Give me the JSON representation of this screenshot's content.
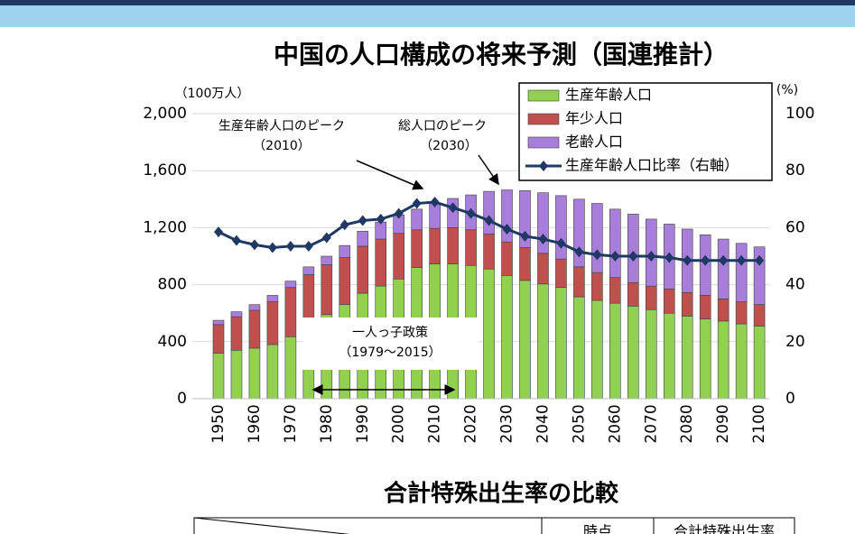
{
  "chart_data": {
    "type": "bar",
    "stacked": true,
    "title": "中国の人口構成の将来予測（国連推計）",
    "y_unit": "（100万人）",
    "y2_unit": "(%)",
    "categories": [
      "1950",
      null,
      "1960",
      null,
      "1970",
      null,
      "1980",
      null,
      "1990",
      null,
      "2000",
      null,
      "2010",
      null,
      "2020",
      null,
      "2030",
      null,
      "2040",
      null,
      "2050",
      null,
      "2060",
      null,
      "2070",
      null,
      "2080",
      null,
      "2090",
      null,
      "2100"
    ],
    "series": [
      {
        "name": "生産年齢人口",
        "color": "#92d050",
        "values": [
          320,
          340,
          355,
          380,
          435,
          500,
          590,
          660,
          740,
          790,
          840,
          920,
          945,
          945,
          935,
          910,
          865,
          830,
          805,
          780,
          715,
          690,
          670,
          650,
          625,
          600,
          580,
          560,
          545,
          525,
          510
        ]
      },
      {
        "name": "年少人口",
        "color": "#c0504d",
        "values": [
          200,
          235,
          265,
          300,
          345,
          370,
          350,
          330,
          330,
          330,
          320,
          265,
          250,
          255,
          250,
          245,
          235,
          230,
          215,
          200,
          210,
          195,
          180,
          165,
          165,
          170,
          165,
          165,
          155,
          155,
          150
        ]
      },
      {
        "name": "老齢人口",
        "color": "#a77ed9",
        "values": [
          30,
          35,
          40,
          45,
          45,
          55,
          60,
          85,
          105,
          120,
          130,
          145,
          175,
          205,
          245,
          300,
          365,
          400,
          425,
          445,
          475,
          485,
          480,
          480,
          470,
          455,
          445,
          425,
          420,
          410,
          405
        ]
      },
      {
        "name": "生産年齢人口比率（右軸）",
        "color": "#1f3864",
        "type": "line",
        "axis": "y2",
        "values": [
          58.5,
          55.5,
          54,
          53,
          53.5,
          53.5,
          56.5,
          61,
          62.5,
          63,
          65,
          68.5,
          69,
          67,
          65,
          62.5,
          59.5,
          57,
          56,
          54.5,
          51.5,
          50.5,
          50,
          50,
          50,
          49.5,
          48.5,
          48.5,
          48.5,
          48.5,
          48.5
        ]
      }
    ],
    "ylim": [
      0,
      2000
    ],
    "yticks": [
      0,
      400,
      800,
      {
        "value": 1200,
        "label": "1,200"
      },
      {
        "value": 1600,
        "label": "1,600"
      },
      {
        "value": 2000,
        "label": "2,000"
      }
    ],
    "y2lim": [
      0,
      100
    ],
    "y2ticks": [
      0,
      20,
      40,
      60,
      80,
      100
    ],
    "grid": true,
    "legend": "top-right",
    "annotations": [
      {
        "text": "生産年齢人口のピーク",
        "sub": "（2010）"
      },
      {
        "text": "総人口のピーク",
        "sub": "（2030）"
      },
      {
        "text": "一人っ子政策",
        "sub": "（1979～2015）"
      }
    ]
  },
  "table": {
    "title": "合計特殊出生率の比較",
    "headers": [
      "時点",
      "合計特殊出生率"
    ]
  }
}
